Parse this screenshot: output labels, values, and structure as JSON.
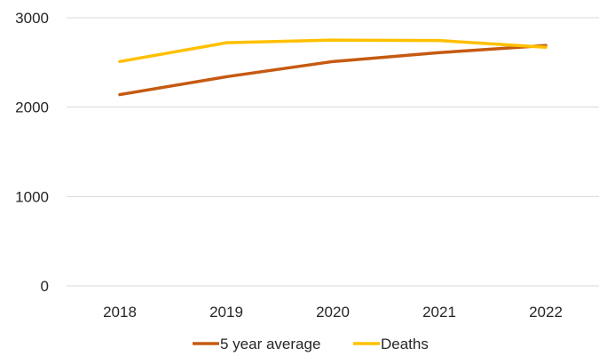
{
  "chart_data": {
    "type": "line",
    "title": "",
    "xlabel": "",
    "ylabel": "",
    "categories": [
      "2018",
      "2019",
      "2020",
      "2021",
      "2022"
    ],
    "ylim": [
      0,
      3000
    ],
    "yticks": [
      0,
      1000,
      2000,
      3000
    ],
    "grid": "horizontal",
    "legend_position": "bottom",
    "series": [
      {
        "name": "5 year average",
        "color": "#c55a11",
        "values": [
          2140,
          2340,
          2510,
          2610,
          2690
        ]
      },
      {
        "name": "Deaths",
        "color": "#ffc000",
        "values": [
          2510,
          2720,
          2750,
          2745,
          2670
        ]
      }
    ]
  }
}
